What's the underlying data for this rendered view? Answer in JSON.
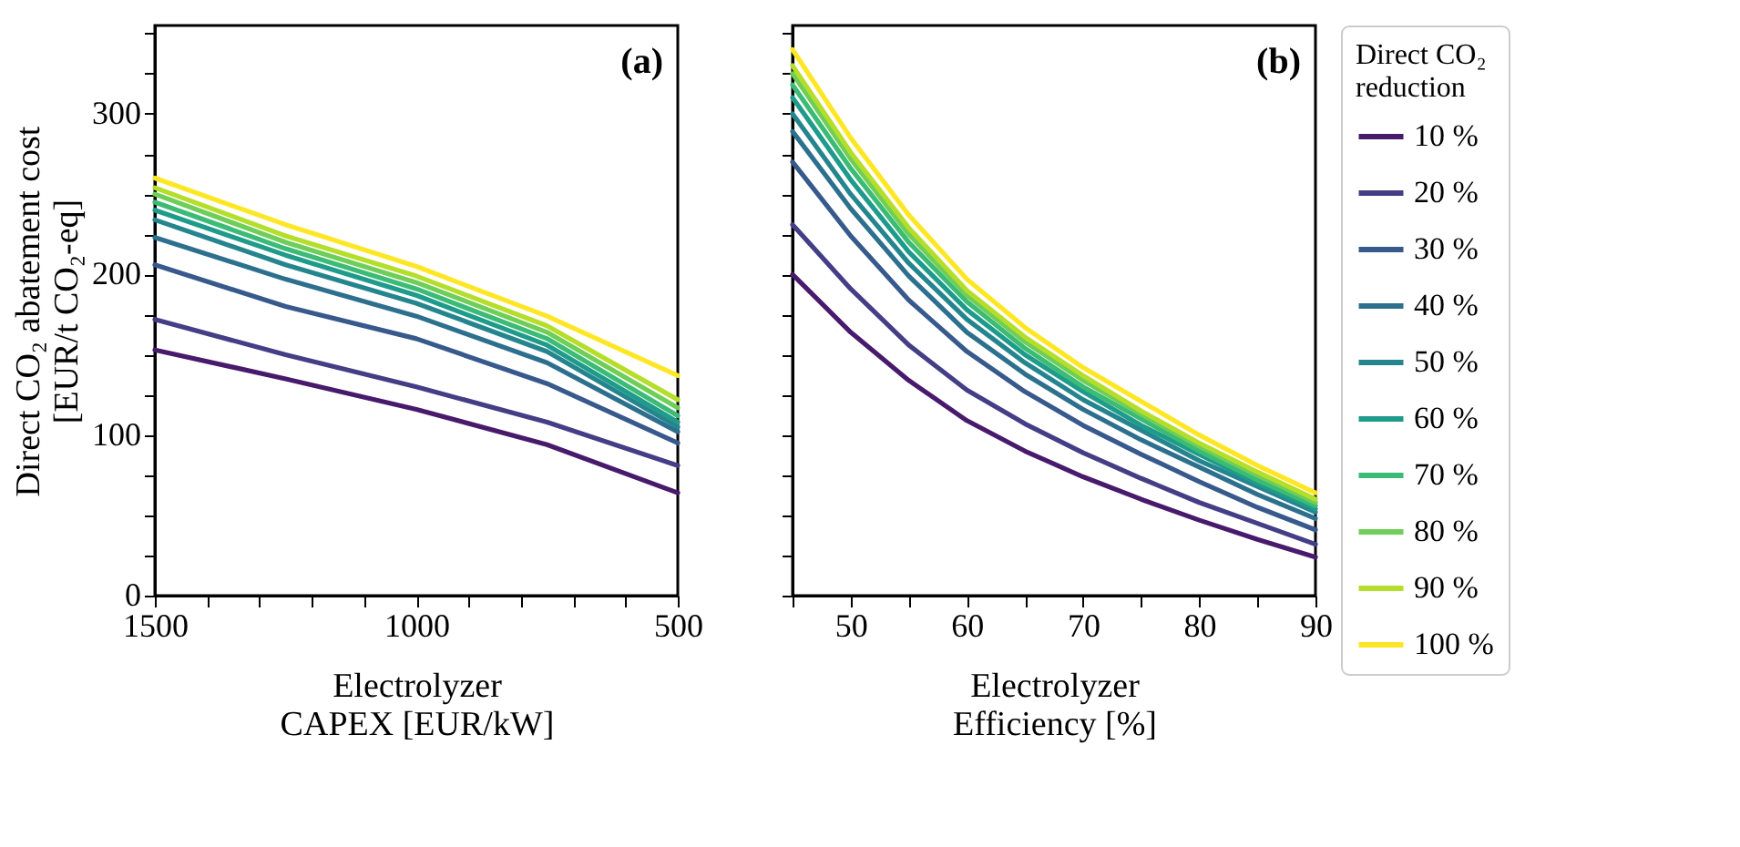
{
  "chart_data": [
    {
      "type": "line",
      "annotations": [
        "(a)"
      ],
      "xlabel": "Electrolyzer\nCAPEX [EUR/kW]",
      "ylabel": "Direct CO₂ abatement cost\n[EUR/t CO₂-eq]",
      "x": [
        1500,
        1250,
        1000,
        750,
        500
      ],
      "xlim": [
        1500,
        500
      ],
      "xticks": [
        1500,
        {
          "value": 1400,
          "label": null
        },
        {
          "value": 1300,
          "label": null
        },
        {
          "value": 1200,
          "label": null
        },
        {
          "value": 1100,
          "label": null
        },
        1000,
        {
          "value": 900,
          "label": null
        },
        {
          "value": 800,
          "label": null
        },
        {
          "value": 700,
          "label": null
        },
        {
          "value": 600,
          "label": null
        },
        500
      ],
      "ylim": [
        0,
        355
      ],
      "yticks": [
        0,
        {
          "value": 25,
          "label": null
        },
        {
          "value": 50,
          "label": null
        },
        {
          "value": 75,
          "label": null
        },
        100,
        {
          "value": 125,
          "label": null
        },
        {
          "value": 150,
          "label": null
        },
        {
          "value": 175,
          "label": null
        },
        200,
        {
          "value": 225,
          "label": null
        },
        {
          "value": 250,
          "label": null
        },
        {
          "value": 275,
          "label": null
        },
        300,
        {
          "value": 325,
          "label": null
        },
        {
          "value": 350,
          "label": null
        }
      ],
      "grid": false,
      "legend": false,
      "series": [
        {
          "color": "#481a6c",
          "values": [
            153,
            135,
            116,
            94,
            64
          ]
        },
        {
          "color": "#433e85",
          "values": [
            172,
            150,
            130,
            108,
            81
          ]
        },
        {
          "color": "#38598c",
          "values": [
            206,
            180,
            160,
            132,
            95
          ]
        },
        {
          "color": "#2d708e",
          "values": [
            223,
            197,
            174,
            145,
            102
          ]
        },
        {
          "color": "#25858e",
          "values": [
            234,
            206,
            182,
            152,
            105
          ]
        },
        {
          "color": "#1e9b8a",
          "values": [
            240,
            212,
            187,
            156,
            108
          ]
        },
        {
          "color": "#3bbb75",
          "values": [
            245,
            216,
            191,
            160,
            112
          ]
        },
        {
          "color": "#6ece58",
          "values": [
            250,
            220,
            195,
            164,
            117
          ]
        },
        {
          "color": "#b5de2b",
          "values": [
            254,
            224,
            199,
            168,
            122
          ]
        },
        {
          "color": "#fde725",
          "values": [
            260,
            231,
            205,
            174,
            137
          ]
        }
      ]
    },
    {
      "type": "line",
      "annotations": [
        "(b)"
      ],
      "xlabel": "Electrolyzer\nEfficiency [%]",
      "x": [
        45,
        50,
        55,
        60,
        65,
        70,
        75,
        80,
        85,
        90
      ],
      "xlim": [
        45,
        90
      ],
      "xticks": [
        {
          "value": 45,
          "label": null
        },
        50,
        {
          "value": 55,
          "label": null
        },
        60,
        {
          "value": 65,
          "label": null
        },
        70,
        {
          "value": 75,
          "label": null
        },
        80,
        {
          "value": 85,
          "label": null
        },
        90
      ],
      "ylim": [
        0,
        355
      ],
      "yticks": [
        0,
        {
          "value": 25,
          "label": null
        },
        {
          "value": 50,
          "label": null
        },
        {
          "value": 75,
          "label": null
        },
        100,
        {
          "value": 125,
          "label": null
        },
        {
          "value": 150,
          "label": null
        },
        {
          "value": 175,
          "label": null
        },
        200,
        {
          "value": 225,
          "label": null
        },
        {
          "value": 250,
          "label": null
        },
        {
          "value": 275,
          "label": null
        },
        300,
        {
          "value": 325,
          "label": null
        },
        {
          "value": 350,
          "label": null
        }
      ],
      "tick_labels": "x",
      "grid": false,
      "legend": "right",
      "legend_title": "Direct CO₂\nreduction",
      "series": [
        {
          "name": "10 %",
          "color": "#481a6c",
          "values": [
            200,
            164,
            134,
            109,
            90,
            74,
            60,
            47,
            35,
            24
          ]
        },
        {
          "name": "20 %",
          "color": "#433e85",
          "values": [
            231,
            191,
            156,
            128,
            107,
            89,
            73,
            58,
            45,
            32
          ]
        },
        {
          "name": "30 %",
          "color": "#38598c",
          "values": [
            270,
            224,
            184,
            152,
            127,
            106,
            88,
            71,
            55,
            41
          ]
        },
        {
          "name": "40 %",
          "color": "#2d708e",
          "values": [
            289,
            241,
            199,
            164,
            138,
            116,
            97,
            80,
            63,
            48
          ]
        },
        {
          "name": "50 %",
          "color": "#25858e",
          "values": [
            300,
            250,
            207,
            172,
            145,
            122,
            103,
            84,
            68,
            52
          ]
        },
        {
          "name": "60 %",
          "color": "#1e9b8a",
          "values": [
            310,
            259,
            214,
            178,
            150,
            127,
            106,
            88,
            70,
            54
          ]
        },
        {
          "name": "70 %",
          "color": "#3bbb75",
          "values": [
            318,
            266,
            220,
            183,
            154,
            130,
            110,
            90,
            72,
            56
          ]
        },
        {
          "name": "80 %",
          "color": "#6ece58",
          "values": [
            325,
            272,
            225,
            187,
            158,
            134,
            113,
            93,
            75,
            58
          ]
        },
        {
          "name": "90 %",
          "color": "#b5de2b",
          "values": [
            330,
            276,
            229,
            190,
            161,
            137,
            115,
            95,
            77,
            60
          ]
        },
        {
          "name": "100 %",
          "color": "#fde725",
          "values": [
            340,
            285,
            237,
            197,
            167,
            142,
            121,
            100,
            81,
            64
          ]
        }
      ]
    }
  ]
}
